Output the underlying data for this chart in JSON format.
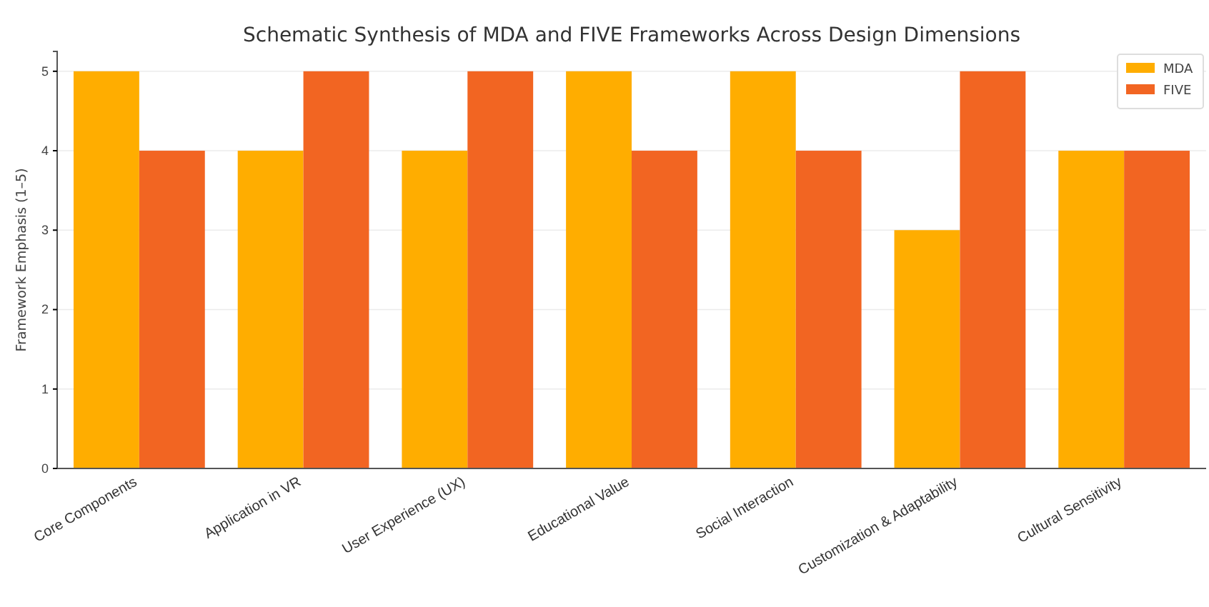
{
  "chart_data": {
    "type": "bar",
    "title": "Schematic Synthesis of MDA and FIVE Frameworks Across Design Dimensions",
    "ylabel": "Framework Emphasis (1–5)",
    "categories": [
      "Core Components",
      "Application in VR",
      "User Experience (UX)",
      "Educational Value",
      "Social Interaction",
      "Customization & Adaptability",
      "Cultural Sensitivity"
    ],
    "series": [
      {
        "name": "MDA",
        "color": "#ffad00",
        "values": [
          5,
          4,
          4,
          5,
          5,
          3,
          4
        ]
      },
      {
        "name": "FIVE",
        "color": "#f26522",
        "values": [
          4,
          5,
          5,
          4,
          4,
          5,
          4
        ]
      }
    ],
    "ylim": [
      0,
      5.25
    ],
    "yticks": [
      0,
      1,
      2,
      3,
      4,
      5
    ],
    "grid": "y",
    "legend": "top right"
  }
}
